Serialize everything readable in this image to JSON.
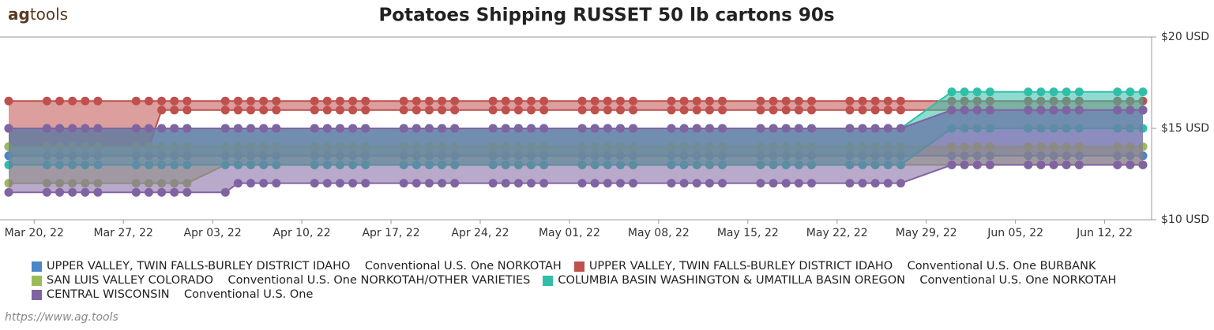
{
  "logo": {
    "bold": "ag",
    "rest": "tools"
  },
  "footer": "https://www.ag.tools",
  "chart_data": {
    "type": "arearange",
    "title": "Potatoes Shipping RUSSET 50 lb cartons 90s",
    "x": [
      "2022-03-18",
      "2022-03-21",
      "2022-03-22",
      "2022-03-23",
      "2022-03-24",
      "2022-03-25",
      "2022-03-28",
      "2022-03-29",
      "2022-03-30",
      "2022-03-31",
      "2022-04-01",
      "2022-04-04",
      "2022-04-05",
      "2022-04-06",
      "2022-04-07",
      "2022-04-08",
      "2022-04-11",
      "2022-04-12",
      "2022-04-13",
      "2022-04-14",
      "2022-04-15",
      "2022-04-18",
      "2022-04-19",
      "2022-04-20",
      "2022-04-21",
      "2022-04-22",
      "2022-04-25",
      "2022-04-26",
      "2022-04-27",
      "2022-04-28",
      "2022-04-29",
      "2022-05-02",
      "2022-05-03",
      "2022-05-04",
      "2022-05-05",
      "2022-05-06",
      "2022-05-09",
      "2022-05-10",
      "2022-05-11",
      "2022-05-12",
      "2022-05-13",
      "2022-05-16",
      "2022-05-17",
      "2022-05-18",
      "2022-05-19",
      "2022-05-20",
      "2022-05-23",
      "2022-05-24",
      "2022-05-25",
      "2022-05-26",
      "2022-05-27",
      "2022-05-31",
      "2022-06-01",
      "2022-06-02",
      "2022-06-03",
      "2022-06-06",
      "2022-06-07",
      "2022-06-08",
      "2022-06-09",
      "2022-06-10",
      "2022-06-13",
      "2022-06-14",
      "2022-06-15"
    ],
    "xlim": [
      "2022-03-18",
      "2022-06-15"
    ],
    "xticks": [
      {
        "value": "2022-03-20",
        "label": "Mar 20, 22"
      },
      {
        "value": "2022-03-27",
        "label": "Mar 27, 22"
      },
      {
        "value": "2022-04-03",
        "label": "Apr 03, 22"
      },
      {
        "value": "2022-04-10",
        "label": "Apr 10, 22"
      },
      {
        "value": "2022-04-17",
        "label": "Apr 17, 22"
      },
      {
        "value": "2022-04-24",
        "label": "Apr 24, 22"
      },
      {
        "value": "2022-05-01",
        "label": "May 01, 22"
      },
      {
        "value": "2022-05-08",
        "label": "May 08, 22"
      },
      {
        "value": "2022-05-15",
        "label": "May 15, 22"
      },
      {
        "value": "2022-05-22",
        "label": "May 22, 22"
      },
      {
        "value": "2022-05-29",
        "label": "May 29, 22"
      },
      {
        "value": "2022-06-05",
        "label": "Jun 05, 22"
      },
      {
        "value": "2022-06-12",
        "label": "Jun 12, 22"
      }
    ],
    "ylim": [
      10,
      20
    ],
    "yticks": [
      {
        "value": 10,
        "label": "$10 USD"
      },
      {
        "value": 15,
        "label": "$15 USD"
      },
      {
        "value": 20,
        "label": "$20 USD"
      }
    ],
    "grid": false,
    "series": [
      {
        "name": "UPPER VALLEY, TWIN FALLS-BURLEY DISTRICT IDAHO    Conventional U.S. One NORKOTAH",
        "color": "#4a86c8",
        "low": [
          13.5,
          13.5,
          13.5,
          13.5,
          13.5,
          13.5,
          13.5,
          13.5,
          13.5,
          13.5,
          13.5,
          13.5,
          13.5,
          13.5,
          13.5,
          13.5,
          13.5,
          13.5,
          13.5,
          13.5,
          13.5,
          13.5,
          13.5,
          13.5,
          13.5,
          13.5,
          13.5,
          13.5,
          13.5,
          13.5,
          13.5,
          13.5,
          13.5,
          13.5,
          13.5,
          13.5,
          13.5,
          13.5,
          13.5,
          13.5,
          13.5,
          13.5,
          13.5,
          13.5,
          13.5,
          13.5,
          13.5,
          13.5,
          13.5,
          13.5,
          13.5,
          13.5,
          13.5,
          13.5,
          13.5,
          13.5,
          13.5,
          13.5,
          13.5,
          13.5,
          13.5,
          13.5,
          13.5
        ],
        "high": [
          15,
          15,
          15,
          15,
          15,
          15,
          15,
          15,
          15,
          15,
          15,
          15,
          15,
          15,
          15,
          15,
          15,
          15,
          15,
          15,
          15,
          15,
          15,
          15,
          15,
          15,
          15,
          15,
          15,
          15,
          15,
          15,
          15,
          15,
          15,
          15,
          15,
          15,
          15,
          15,
          15,
          15,
          15,
          15,
          15,
          15,
          15,
          15,
          15,
          15,
          15,
          16,
          16,
          16,
          16,
          16,
          16,
          16,
          16,
          16,
          16,
          16,
          16
        ]
      },
      {
        "name": "UPPER VALLEY, TWIN FALLS-BURLEY DISTRICT IDAHO    Conventional U.S. One BURBANK",
        "color": "#c0504d",
        "low": [
          14,
          14,
          14,
          14,
          14,
          14,
          14,
          14,
          16,
          16,
          16,
          16,
          16,
          16,
          16,
          16,
          16,
          16,
          16,
          16,
          16,
          16,
          16,
          16,
          16,
          16,
          16,
          16,
          16,
          16,
          16,
          16,
          16,
          16,
          16,
          16,
          16,
          16,
          16,
          16,
          16,
          16,
          16,
          16,
          16,
          16,
          16,
          16,
          16,
          16,
          16,
          16,
          16,
          16,
          16,
          16,
          16,
          16,
          16,
          16,
          16,
          16,
          16
        ],
        "high": [
          16.5,
          16.5,
          16.5,
          16.5,
          16.5,
          16.5,
          16.5,
          16.5,
          16.5,
          16.5,
          16.5,
          16.5,
          16.5,
          16.5,
          16.5,
          16.5,
          16.5,
          16.5,
          16.5,
          16.5,
          16.5,
          16.5,
          16.5,
          16.5,
          16.5,
          16.5,
          16.5,
          16.5,
          16.5,
          16.5,
          16.5,
          16.5,
          16.5,
          16.5,
          16.5,
          16.5,
          16.5,
          16.5,
          16.5,
          16.5,
          16.5,
          16.5,
          16.5,
          16.5,
          16.5,
          16.5,
          16.5,
          16.5,
          16.5,
          16.5,
          16.5,
          16.5,
          16.5,
          16.5,
          16.5,
          16.5,
          16.5,
          16.5,
          16.5,
          16.5,
          16.5,
          16.5,
          16.5
        ]
      },
      {
        "name": "SAN LUIS VALLEY COLORADO    Conventional U.S. One NORKOTAH/OTHER VARIETIES",
        "color": "#9bbb59",
        "low": [
          12,
          12,
          12,
          12,
          12,
          12,
          12,
          12,
          12,
          12,
          12,
          13,
          13,
          13,
          13,
          13,
          13,
          13,
          13,
          13,
          13,
          13,
          13,
          13,
          13,
          13,
          13,
          13,
          13,
          13,
          13,
          13,
          13,
          13,
          13,
          13,
          13,
          13,
          13,
          13,
          13,
          13,
          13,
          13,
          13,
          13,
          13,
          13,
          13,
          13,
          13,
          13,
          13,
          13,
          13,
          13,
          13,
          13,
          13,
          13,
          13,
          13,
          13
        ],
        "high": [
          14,
          14,
          14,
          14,
          14,
          14,
          14,
          14,
          14,
          14,
          14,
          14,
          14,
          14,
          14,
          14,
          14,
          14,
          14,
          14,
          14,
          14,
          14,
          14,
          14,
          14,
          14,
          14,
          14,
          14,
          14,
          14,
          14,
          14,
          14,
          14,
          14,
          14,
          14,
          14,
          14,
          14,
          14,
          14,
          14,
          14,
          14,
          14,
          14,
          14,
          14,
          14,
          14,
          14,
          14,
          14,
          14,
          14,
          14,
          14,
          14,
          14,
          14
        ]
      },
      {
        "name": "COLUMBIA BASIN WASHINGTON & UMATILLA BASIN OREGON    Conventional U.S. One NORKOTAH",
        "color": "#2fbfa8",
        "low": [
          13,
          13,
          13,
          13,
          13,
          13,
          13,
          13,
          13,
          13,
          13,
          13,
          13,
          13,
          13,
          13,
          13,
          13,
          13,
          13,
          13,
          13,
          13,
          13,
          13,
          13,
          13,
          13,
          13,
          13,
          13,
          13,
          13,
          13,
          13,
          13,
          13,
          13,
          13,
          13,
          13,
          13,
          13,
          13,
          13,
          13,
          13,
          13,
          13,
          13,
          13,
          15,
          15,
          15,
          15,
          15,
          15,
          15,
          15,
          15,
          15,
          15,
          15
        ],
        "high": [
          15,
          15,
          15,
          15,
          15,
          15,
          15,
          15,
          15,
          15,
          15,
          15,
          15,
          15,
          15,
          15,
          15,
          15,
          15,
          15,
          15,
          15,
          15,
          15,
          15,
          15,
          15,
          15,
          15,
          15,
          15,
          15,
          15,
          15,
          15,
          15,
          15,
          15,
          15,
          15,
          15,
          15,
          15,
          15,
          15,
          15,
          15,
          15,
          15,
          15,
          15,
          17,
          17,
          17,
          17,
          17,
          17,
          17,
          17,
          17,
          17,
          17,
          17
        ]
      },
      {
        "name": "CENTRAL WISCONSIN    Conventional U.S. One",
        "color": "#8064a2",
        "low": [
          11.5,
          11.5,
          11.5,
          11.5,
          11.5,
          11.5,
          11.5,
          11.5,
          11.5,
          11.5,
          11.5,
          11.5,
          12,
          12,
          12,
          12,
          12,
          12,
          12,
          12,
          12,
          12,
          12,
          12,
          12,
          12,
          12,
          12,
          12,
          12,
          12,
          12,
          12,
          12,
          12,
          12,
          12,
          12,
          12,
          12,
          12,
          12,
          12,
          12,
          12,
          12,
          12,
          12,
          12,
          12,
          12,
          13,
          13,
          13,
          13,
          13,
          13,
          13,
          13,
          13,
          13,
          13,
          13
        ],
        "high": [
          15,
          15,
          15,
          15,
          15,
          15,
          15,
          15,
          15,
          15,
          15,
          15,
          15,
          15,
          15,
          15,
          15,
          15,
          15,
          15,
          15,
          15,
          15,
          15,
          15,
          15,
          15,
          15,
          15,
          15,
          15,
          15,
          15,
          15,
          15,
          15,
          15,
          15,
          15,
          15,
          15,
          15,
          15,
          15,
          15,
          15,
          15,
          15,
          15,
          15,
          15,
          16,
          16,
          16,
          16,
          16,
          16,
          16,
          16,
          16,
          16,
          16,
          16
        ]
      }
    ]
  }
}
